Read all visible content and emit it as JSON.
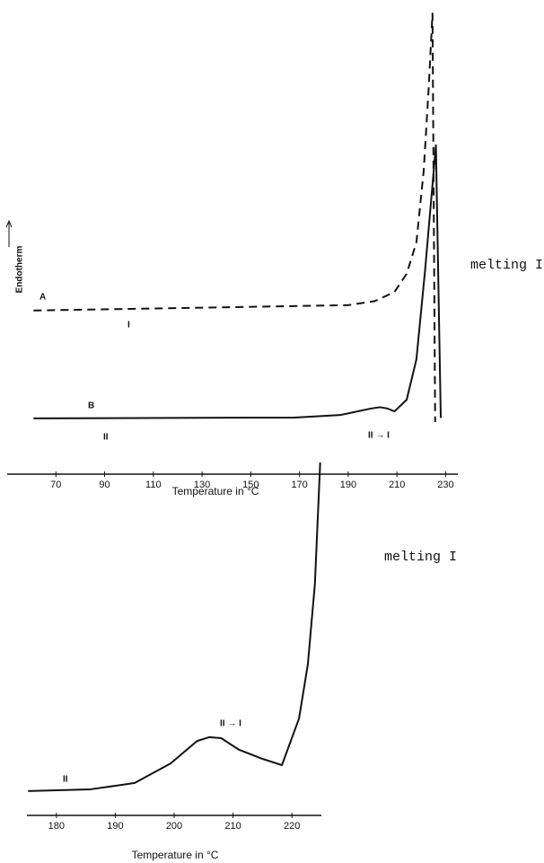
{
  "chart_data": [
    {
      "type": "line",
      "xlabel": "Temperature in °C",
      "ylabel": "Endotherm",
      "xlim": [
        50,
        235
      ],
      "ylim": [
        0,
        100
      ],
      "xticks": [
        70,
        90,
        110,
        130,
        150,
        170,
        190,
        210,
        230
      ],
      "annotations": [
        "I",
        "II",
        "II → I",
        "melting I"
      ],
      "series": [
        {
          "name": "A",
          "color": "#111111",
          "dashed": true,
          "x": [
            60.8,
            190,
            201,
            209,
            214,
            218,
            221,
            223,
            224.6,
            225.7
          ],
          "values": [
            27,
            28.3,
            29.3,
            31.5,
            35.9,
            43.5,
            60.9,
            80.4,
            98.9,
            0
          ]
        },
        {
          "name": "B",
          "color": "#111111",
          "dashed": false,
          "x": [
            60.8,
            168,
            186.7,
            194,
            199.6,
            203,
            206,
            209,
            214,
            218,
            221.6,
            223.8,
            226,
            228
          ],
          "values": [
            0.9,
            1.1,
            1.7,
            2.6,
            3.3,
            3.6,
            3.3,
            2.6,
            5.4,
            15.2,
            37,
            52,
            67,
            1
          ]
        }
      ]
    },
    {
      "type": "line",
      "xlabel": "Temperature in °C",
      "xlim": [
        175,
        225
      ],
      "ylim": [
        0,
        100
      ],
      "xticks": [
        180,
        190,
        200,
        210,
        220
      ],
      "annotations": [
        "II",
        "II → I",
        "melting I"
      ],
      "series": [
        {
          "color": "#111111",
          "dashed": false,
          "x": [
            175.2,
            185.8,
            193.3,
            199.4,
            203.9,
            206,
            208,
            211,
            215,
            218.3,
            221.2,
            222.7,
            223.9,
            224.8
          ],
          "values": [
            4.9,
            5.4,
            7.2,
            12.8,
            19.2,
            20.3,
            20,
            16.7,
            14.1,
            12.3,
            25.6,
            41,
            64,
            98.7
          ]
        }
      ]
    }
  ]
}
